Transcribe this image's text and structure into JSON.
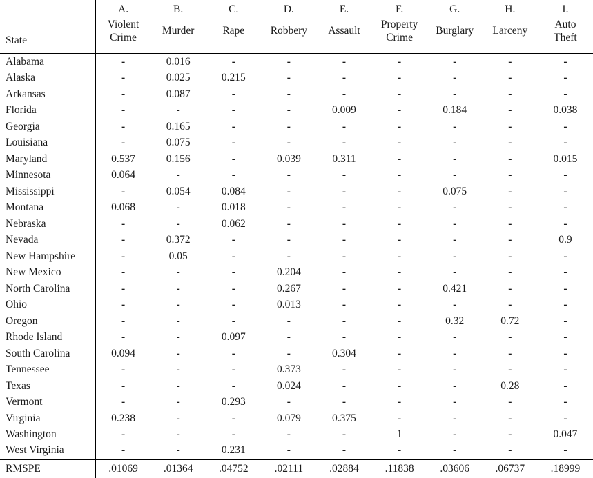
{
  "colors": {
    "text": "#1b1b1b",
    "rule": "#000000",
    "background": "#ffffff"
  },
  "table": {
    "state_header": "State",
    "columns": [
      {
        "id": "violent-crime",
        "letter": "A.",
        "name": "Violent Crime",
        "name_lines": [
          "Violent",
          "Crime"
        ]
      },
      {
        "id": "murder",
        "letter": "B.",
        "name": "Murder",
        "name_lines": [
          "Murder"
        ]
      },
      {
        "id": "rape",
        "letter": "C.",
        "name": "Rape",
        "name_lines": [
          "Rape"
        ]
      },
      {
        "id": "robbery",
        "letter": "D.",
        "name": "Robbery",
        "name_lines": [
          "Robbery"
        ]
      },
      {
        "id": "assault",
        "letter": "E.",
        "name": "Assault",
        "name_lines": [
          "Assault"
        ]
      },
      {
        "id": "property-crime",
        "letter": "F.",
        "name": "Property Crime",
        "name_lines": [
          "Property",
          "Crime"
        ]
      },
      {
        "id": "burglary",
        "letter": "G.",
        "name": "Burglary",
        "name_lines": [
          "Burglary"
        ]
      },
      {
        "id": "larceny",
        "letter": "H.",
        "name": "Larceny",
        "name_lines": [
          "Larceny"
        ]
      },
      {
        "id": "auto-theft",
        "letter": "I.",
        "name": "Auto Theft",
        "name_lines": [
          "Auto",
          "Theft"
        ]
      }
    ],
    "rows": [
      {
        "state": "Alabama",
        "values": [
          "-",
          "0.016",
          "-",
          "-",
          "-",
          "-",
          "-",
          "-",
          "-"
        ]
      },
      {
        "state": "Alaska",
        "values": [
          "-",
          "0.025",
          "0.215",
          "-",
          "-",
          "-",
          "-",
          "-",
          "-"
        ]
      },
      {
        "state": "Arkansas",
        "values": [
          "-",
          "0.087",
          "-",
          "-",
          "-",
          "-",
          "-",
          "-",
          "-"
        ]
      },
      {
        "state": "Florida",
        "values": [
          "-",
          "-",
          "-",
          "-",
          "0.009",
          "-",
          "0.184",
          "-",
          "0.038"
        ]
      },
      {
        "state": "Georgia",
        "values": [
          "-",
          "0.165",
          "-",
          "-",
          "-",
          "-",
          "-",
          "-",
          "-"
        ]
      },
      {
        "state": "Louisiana",
        "values": [
          "-",
          "0.075",
          "-",
          "-",
          "-",
          "-",
          "-",
          "-",
          "-"
        ]
      },
      {
        "state": "Maryland",
        "values": [
          "0.537",
          "0.156",
          "-",
          "0.039",
          "0.311",
          "-",
          "-",
          "-",
          "0.015"
        ]
      },
      {
        "state": "Minnesota",
        "values": [
          "0.064",
          "-",
          "-",
          "-",
          "-",
          "-",
          "-",
          "-",
          "-"
        ]
      },
      {
        "state": "Mississippi",
        "values": [
          "-",
          "0.054",
          "0.084",
          "-",
          "-",
          "-",
          "0.075",
          "-",
          "-"
        ]
      },
      {
        "state": "Montana",
        "values": [
          "0.068",
          "-",
          "0.018",
          "-",
          "-",
          "-",
          "-",
          "-",
          "-"
        ]
      },
      {
        "state": "Nebraska",
        "values": [
          "-",
          "-",
          "0.062",
          "-",
          "-",
          "-",
          "-",
          "-",
          "-"
        ]
      },
      {
        "state": "Nevada",
        "values": [
          "-",
          "0.372",
          "-",
          "-",
          "-",
          "-",
          "-",
          "-",
          "0.9"
        ]
      },
      {
        "state": "New Hampshire",
        "values": [
          "-",
          "0.05",
          "-",
          "-",
          "-",
          "-",
          "-",
          "-",
          "-"
        ]
      },
      {
        "state": "New Mexico",
        "values": [
          "-",
          "-",
          "-",
          "0.204",
          "-",
          "-",
          "-",
          "-",
          "-"
        ]
      },
      {
        "state": "North Carolina",
        "values": [
          "-",
          "-",
          "-",
          "0.267",
          "-",
          "-",
          "0.421",
          "-",
          "-"
        ]
      },
      {
        "state": "Ohio",
        "values": [
          "-",
          "-",
          "-",
          "0.013",
          "-",
          "-",
          "-",
          "-",
          "-"
        ]
      },
      {
        "state": "Oregon",
        "values": [
          "-",
          "-",
          "-",
          "-",
          "-",
          "-",
          "0.32",
          "0.72",
          "-"
        ]
      },
      {
        "state": "Rhode Island",
        "values": [
          "-",
          "-",
          "0.097",
          "-",
          "-",
          "-",
          "-",
          "-",
          "-"
        ]
      },
      {
        "state": "South Carolina",
        "values": [
          "0.094",
          "-",
          "-",
          "-",
          "0.304",
          "-",
          "-",
          "-",
          "-"
        ]
      },
      {
        "state": "Tennessee",
        "values": [
          "-",
          "-",
          "-",
          "0.373",
          "-",
          "-",
          "-",
          "-",
          "-"
        ]
      },
      {
        "state": "Texas",
        "values": [
          "-",
          "-",
          "-",
          "0.024",
          "-",
          "-",
          "-",
          "0.28",
          "-"
        ]
      },
      {
        "state": "Vermont",
        "values": [
          "-",
          "-",
          "0.293",
          "-",
          "-",
          "-",
          "-",
          "-",
          "-"
        ]
      },
      {
        "state": "Virginia",
        "values": [
          "0.238",
          "-",
          "-",
          "0.079",
          "0.375",
          "-",
          "-",
          "-",
          "-"
        ]
      },
      {
        "state": "Washington",
        "values": [
          "-",
          "-",
          "-",
          "-",
          "-",
          "1",
          "-",
          "-",
          "0.047"
        ]
      },
      {
        "state": "West Virginia",
        "values": [
          "-",
          "-",
          "0.231",
          "-",
          "-",
          "-",
          "-",
          "-",
          "-"
        ]
      }
    ],
    "footer": {
      "label": "RMSPE",
      "values": [
        ".01069",
        ".01364",
        ".04752",
        ".02111",
        ".02884",
        ".11838",
        ".03606",
        ".06737",
        ".18999"
      ]
    }
  }
}
